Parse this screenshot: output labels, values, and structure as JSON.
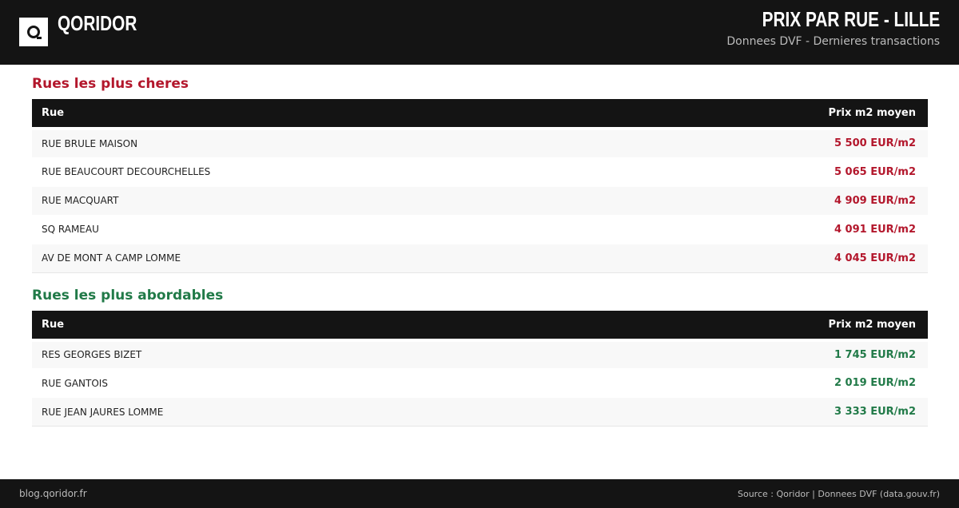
{
  "header": {
    "brand": "QORIDOR",
    "title": "PRIX PAR RUE - LILLE",
    "subtitle": "Donnees DVF - Dernieres transactions"
  },
  "expensive": {
    "heading": "Rues les plus cheres",
    "col_street": "Rue",
    "col_price": "Prix m2 moyen",
    "rows": [
      {
        "street": "RUE BRULE MAISON",
        "price": "5 500 EUR/m2"
      },
      {
        "street": "RUE BEAUCOURT DECOURCHELLES",
        "price": "5 065 EUR/m2"
      },
      {
        "street": "RUE MACQUART",
        "price": "4 909 EUR/m2"
      },
      {
        "street": "SQ RAMEAU",
        "price": "4 091 EUR/m2"
      },
      {
        "street": "AV DE MONT A CAMP LOMME",
        "price": "4 045 EUR/m2"
      }
    ]
  },
  "affordable": {
    "heading": "Rues les plus abordables",
    "col_street": "Rue",
    "col_price": "Prix m2 moyen",
    "rows": [
      {
        "street": "RES GEORGES BIZET",
        "price": "1 745 EUR/m2"
      },
      {
        "street": "RUE GANTOIS",
        "price": "2 019 EUR/m2"
      },
      {
        "street": "RUE JEAN JAURES LOMME",
        "price": "3 333 EUR/m2"
      }
    ]
  },
  "footer": {
    "left": "blog.qoridor.fr",
    "right": "Source : Qoridor | Donnees DVF (data.gouv.fr)"
  },
  "colors": {
    "expensive": "#b3172c",
    "affordable": "#217a48",
    "dark": "#141414"
  }
}
